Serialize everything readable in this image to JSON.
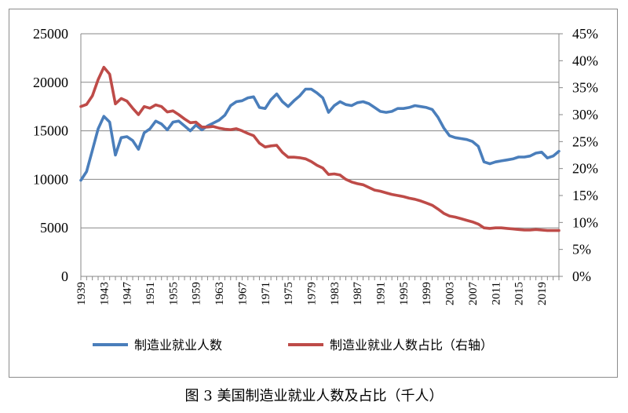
{
  "caption": "图 3  美国制造业就业人数及占比（千人）",
  "chart_data": {
    "type": "line",
    "title": "",
    "xlabel": "",
    "ylabel": "",
    "y_left": {
      "min": 0,
      "max": 25000,
      "step": 5000,
      "ticks": [
        "0",
        "5000",
        "10000",
        "15000",
        "20000",
        "25000"
      ]
    },
    "y_right": {
      "min": 0,
      "max": 45,
      "step": 5,
      "ticks": [
        "0%",
        "5%",
        "10%",
        "15%",
        "20%",
        "25%",
        "30%",
        "35%",
        "40%",
        "45%"
      ]
    },
    "x_ticks": [
      "1939",
      "1943",
      "1947",
      "1951",
      "1955",
      "1959",
      "1963",
      "1967",
      "1971",
      "1975",
      "1979",
      "1983",
      "1987",
      "1991",
      "1995",
      "1999",
      "2003",
      "2007",
      "2011",
      "2015",
      "2019"
    ],
    "grid": true,
    "legend_position": "bottom",
    "x": [
      1939,
      1940,
      1941,
      1942,
      1943,
      1944,
      1945,
      1946,
      1947,
      1948,
      1949,
      1950,
      1951,
      1952,
      1953,
      1954,
      1955,
      1956,
      1957,
      1958,
      1959,
      1960,
      1961,
      1962,
      1963,
      1964,
      1965,
      1966,
      1967,
      1968,
      1969,
      1970,
      1971,
      1972,
      1973,
      1974,
      1975,
      1976,
      1977,
      1978,
      1979,
      1980,
      1981,
      1982,
      1983,
      1984,
      1985,
      1986,
      1987,
      1988,
      1989,
      1990,
      1991,
      1992,
      1993,
      1994,
      1995,
      1996,
      1997,
      1998,
      1999,
      2000,
      2001,
      2002,
      2003,
      2004,
      2005,
      2006,
      2007,
      2008,
      2009,
      2010,
      2011,
      2012,
      2013,
      2014,
      2015,
      2016,
      2017,
      2018,
      2019,
      2020,
      2021,
      2022
    ],
    "series": [
      {
        "name": "制造业就业人数",
        "axis": "left",
        "color": "#4a7ebb",
        "values": [
          9900,
          10800,
          13000,
          15200,
          16500,
          15900,
          12500,
          14300,
          14400,
          14000,
          13100,
          14800,
          15200,
          16000,
          15700,
          15100,
          15900,
          16000,
          15500,
          15000,
          15600,
          15100,
          15500,
          15800,
          16100,
          16600,
          17600,
          18000,
          18100,
          18400,
          18500,
          17400,
          17300,
          18200,
          18800,
          18000,
          17500,
          18100,
          18600,
          19300,
          19300,
          18900,
          18400,
          16900,
          17600,
          18000,
          17700,
          17600,
          17900,
          18000,
          17800,
          17400,
          17000,
          16900,
          17000,
          17300,
          17300,
          17400,
          17600,
          17500,
          17400,
          17200,
          16400,
          15300,
          14500,
          14300,
          14200,
          14100,
          13900,
          13400,
          11800,
          11600,
          11800,
          11900,
          12000,
          12100,
          12300,
          12300,
          12400,
          12700,
          12800,
          12200,
          12400,
          12900
        ]
      },
      {
        "name": "制造业就业人数占比（右轴）",
        "axis": "right",
        "color": "#be4b48",
        "values": [
          31.5,
          31.9,
          33.5,
          36.5,
          38.8,
          37.5,
          32.0,
          33.0,
          32.5,
          31.2,
          30.0,
          31.5,
          31.2,
          31.8,
          31.5,
          30.5,
          30.7,
          30.0,
          29.2,
          28.5,
          28.6,
          27.7,
          27.7,
          27.8,
          27.5,
          27.3,
          27.2,
          27.4,
          27.0,
          26.5,
          26.1,
          24.7,
          24.0,
          24.2,
          24.3,
          23.0,
          22.1,
          22.1,
          22.0,
          21.8,
          21.3,
          20.6,
          20.1,
          18.9,
          19.0,
          18.8,
          18.0,
          17.5,
          17.2,
          17.0,
          16.5,
          16.0,
          15.8,
          15.5,
          15.2,
          15.0,
          14.8,
          14.5,
          14.3,
          14.0,
          13.6,
          13.2,
          12.5,
          11.7,
          11.2,
          11.0,
          10.7,
          10.4,
          10.1,
          9.7,
          9.0,
          8.9,
          9.0,
          9.0,
          8.9,
          8.8,
          8.7,
          8.6,
          8.6,
          8.7,
          8.6,
          8.5,
          8.5,
          8.5
        ]
      }
    ]
  }
}
